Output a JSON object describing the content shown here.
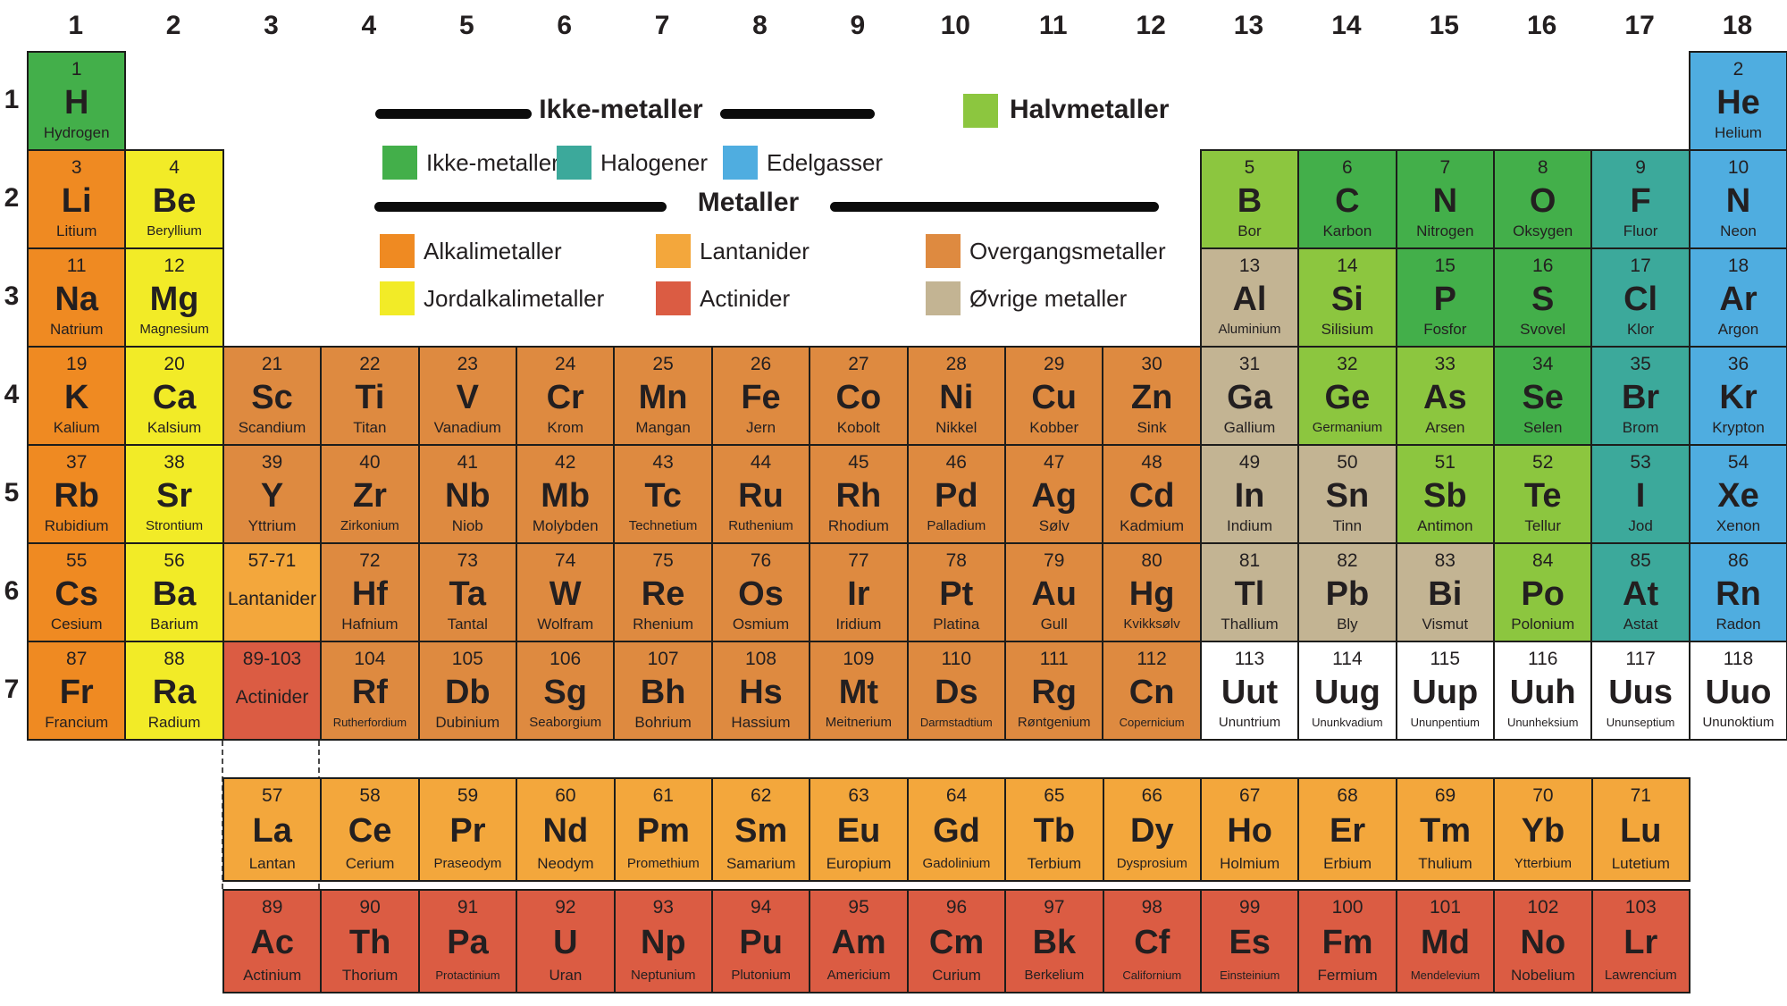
{
  "colors": {
    "nonmetal": "#43AF4A",
    "metalloid": "#8CC63F",
    "halogen": "#3CA99B",
    "noble": "#4FADE0",
    "alkali": "#EF8A22",
    "alkaline": "#F2EB27",
    "transition": "#DE8A40",
    "lanthanide": "#F3A73C",
    "actinide": "#DB5C43",
    "post": "#C3B493",
    "unknown": "#FFFFFF",
    "border": "#1d1d1b",
    "text": "#231f20"
  },
  "group_labels": [
    "1",
    "2",
    "3",
    "4",
    "5",
    "6",
    "7",
    "8",
    "9",
    "10",
    "11",
    "12",
    "13",
    "14",
    "15",
    "16",
    "17",
    "18"
  ],
  "period_labels": [
    "1",
    "2",
    "3",
    "4",
    "5",
    "6",
    "7"
  ],
  "legend": {
    "nonmetals_header": "Ikke-metaller",
    "metals_header": "Metaller",
    "halvmetaller": {
      "label": "Halvmetaller",
      "color": "#8CC63F"
    },
    "nonmetal_items": [
      {
        "label": "Ikke-metaller",
        "color": "#43AF4A"
      },
      {
        "label": "Halogener",
        "color": "#3CA99B"
      },
      {
        "label": "Edelgasser",
        "color": "#4FADE0"
      }
    ],
    "metal_items": [
      {
        "label": "Alkalimetaller",
        "color": "#EF8A22"
      },
      {
        "label": "Lantanider",
        "color": "#F3A73C"
      },
      {
        "label": "Overgangsmetaller",
        "color": "#DE8A40"
      },
      {
        "label": "Jordalkalimetaller",
        "color": "#F2EB27"
      },
      {
        "label": "Actinider",
        "color": "#DB5C43"
      },
      {
        "label": "Øvrige metaller",
        "color": "#C3B493"
      }
    ]
  },
  "placeholders": [
    {
      "range": "57-71",
      "label": "Lantanider",
      "group": 3,
      "period": 6,
      "cat": "lanthanide"
    },
    {
      "range": "89-103",
      "label": "Actinider",
      "group": 3,
      "period": 7,
      "cat": "actinide"
    }
  ],
  "elements": [
    {
      "n": "1",
      "s": "H",
      "name": "Hydrogen",
      "group": 1,
      "period": 1,
      "cat": "nonmetal"
    },
    {
      "n": "2",
      "s": "He",
      "name": "Helium",
      "group": 18,
      "period": 1,
      "cat": "noble"
    },
    {
      "n": "3",
      "s": "Li",
      "name": "Litium",
      "group": 1,
      "period": 2,
      "cat": "alkali"
    },
    {
      "n": "4",
      "s": "Be",
      "name": "Beryllium",
      "group": 2,
      "period": 2,
      "cat": "alkaline"
    },
    {
      "n": "5",
      "s": "B",
      "name": "Bor",
      "group": 13,
      "period": 2,
      "cat": "metalloid"
    },
    {
      "n": "6",
      "s": "C",
      "name": "Karbon",
      "group": 14,
      "period": 2,
      "cat": "nonmetal"
    },
    {
      "n": "7",
      "s": "N",
      "name": "Nitrogen",
      "group": 15,
      "period": 2,
      "cat": "nonmetal"
    },
    {
      "n": "8",
      "s": "O",
      "name": "Oksygen",
      "group": 16,
      "period": 2,
      "cat": "nonmetal"
    },
    {
      "n": "9",
      "s": "F",
      "name": "Fluor",
      "group": 17,
      "period": 2,
      "cat": "halogen"
    },
    {
      "n": "10",
      "s": "N",
      "name": "Neon",
      "group": 18,
      "period": 2,
      "cat": "noble"
    },
    {
      "n": "11",
      "s": "Na",
      "name": "Natrium",
      "group": 1,
      "period": 3,
      "cat": "alkali"
    },
    {
      "n": "12",
      "s": "Mg",
      "name": "Magnesium",
      "group": 2,
      "period": 3,
      "cat": "alkaline"
    },
    {
      "n": "13",
      "s": "Al",
      "name": "Aluminium",
      "group": 13,
      "period": 3,
      "cat": "post"
    },
    {
      "n": "14",
      "s": "Si",
      "name": "Silisium",
      "group": 14,
      "period": 3,
      "cat": "metalloid"
    },
    {
      "n": "15",
      "s": "P",
      "name": "Fosfor",
      "group": 15,
      "period": 3,
      "cat": "nonmetal"
    },
    {
      "n": "16",
      "s": "S",
      "name": "Svovel",
      "group": 16,
      "period": 3,
      "cat": "nonmetal"
    },
    {
      "n": "17",
      "s": "Cl",
      "name": "Klor",
      "group": 17,
      "period": 3,
      "cat": "halogen"
    },
    {
      "n": "18",
      "s": "Ar",
      "name": "Argon",
      "group": 18,
      "period": 3,
      "cat": "noble"
    },
    {
      "n": "19",
      "s": "K",
      "name": "Kalium",
      "group": 1,
      "period": 4,
      "cat": "alkali"
    },
    {
      "n": "20",
      "s": "Ca",
      "name": "Kalsium",
      "group": 2,
      "period": 4,
      "cat": "alkaline"
    },
    {
      "n": "21",
      "s": "Sc",
      "name": "Scandium",
      "group": 3,
      "period": 4,
      "cat": "transition"
    },
    {
      "n": "22",
      "s": "Ti",
      "name": "Titan",
      "group": 4,
      "period": 4,
      "cat": "transition"
    },
    {
      "n": "23",
      "s": "V",
      "name": "Vanadium",
      "group": 5,
      "period": 4,
      "cat": "transition"
    },
    {
      "n": "24",
      "s": "Cr",
      "name": "Krom",
      "group": 6,
      "period": 4,
      "cat": "transition"
    },
    {
      "n": "25",
      "s": "Mn",
      "name": "Mangan",
      "group": 7,
      "period": 4,
      "cat": "transition"
    },
    {
      "n": "26",
      "s": "Fe",
      "name": "Jern",
      "group": 8,
      "period": 4,
      "cat": "transition"
    },
    {
      "n": "27",
      "s": "Co",
      "name": "Kobolt",
      "group": 9,
      "period": 4,
      "cat": "transition"
    },
    {
      "n": "28",
      "s": "Ni",
      "name": "Nikkel",
      "group": 10,
      "period": 4,
      "cat": "transition"
    },
    {
      "n": "29",
      "s": "Cu",
      "name": "Kobber",
      "group": 11,
      "period": 4,
      "cat": "transition"
    },
    {
      "n": "30",
      "s": "Zn",
      "name": "Sink",
      "group": 12,
      "period": 4,
      "cat": "transition"
    },
    {
      "n": "31",
      "s": "Ga",
      "name": "Gallium",
      "group": 13,
      "period": 4,
      "cat": "post"
    },
    {
      "n": "32",
      "s": "Ge",
      "name": "Germanium",
      "group": 14,
      "period": 4,
      "cat": "metalloid"
    },
    {
      "n": "33",
      "s": "As",
      "name": "Arsen",
      "group": 15,
      "period": 4,
      "cat": "metalloid"
    },
    {
      "n": "34",
      "s": "Se",
      "name": "Selen",
      "group": 16,
      "period": 4,
      "cat": "nonmetal"
    },
    {
      "n": "35",
      "s": "Br",
      "name": "Brom",
      "group": 17,
      "period": 4,
      "cat": "halogen"
    },
    {
      "n": "36",
      "s": "Kr",
      "name": "Krypton",
      "group": 18,
      "period": 4,
      "cat": "noble"
    },
    {
      "n": "37",
      "s": "Rb",
      "name": "Rubidium",
      "group": 1,
      "period": 5,
      "cat": "alkali"
    },
    {
      "n": "38",
      "s": "Sr",
      "name": "Strontium",
      "group": 2,
      "period": 5,
      "cat": "alkaline"
    },
    {
      "n": "39",
      "s": "Y",
      "name": "Yttrium",
      "group": 3,
      "period": 5,
      "cat": "transition"
    },
    {
      "n": "40",
      "s": "Zr",
      "name": "Zirkonium",
      "group": 4,
      "period": 5,
      "cat": "transition"
    },
    {
      "n": "41",
      "s": "Nb",
      "name": "Niob",
      "group": 5,
      "period": 5,
      "cat": "transition"
    },
    {
      "n": "42",
      "s": "Mb",
      "name": "Molybden",
      "group": 6,
      "period": 5,
      "cat": "transition"
    },
    {
      "n": "43",
      "s": "Tc",
      "name": "Technetium",
      "group": 7,
      "period": 5,
      "cat": "transition"
    },
    {
      "n": "44",
      "s": "Ru",
      "name": "Ruthenium",
      "group": 8,
      "period": 5,
      "cat": "transition"
    },
    {
      "n": "45",
      "s": "Rh",
      "name": "Rhodium",
      "group": 9,
      "period": 5,
      "cat": "transition"
    },
    {
      "n": "46",
      "s": "Pd",
      "name": "Palladium",
      "group": 10,
      "period": 5,
      "cat": "transition"
    },
    {
      "n": "47",
      "s": "Ag",
      "name": "Sølv",
      "group": 11,
      "period": 5,
      "cat": "transition"
    },
    {
      "n": "48",
      "s": "Cd",
      "name": "Kadmium",
      "group": 12,
      "period": 5,
      "cat": "transition"
    },
    {
      "n": "49",
      "s": "In",
      "name": "Indium",
      "group": 13,
      "period": 5,
      "cat": "post"
    },
    {
      "n": "50",
      "s": "Sn",
      "name": "Tinn",
      "group": 14,
      "period": 5,
      "cat": "post"
    },
    {
      "n": "51",
      "s": "Sb",
      "name": "Antimon",
      "group": 15,
      "period": 5,
      "cat": "metalloid"
    },
    {
      "n": "52",
      "s": "Te",
      "name": "Tellur",
      "group": 16,
      "period": 5,
      "cat": "metalloid"
    },
    {
      "n": "53",
      "s": "I",
      "name": "Jod",
      "group": 17,
      "period": 5,
      "cat": "halogen"
    },
    {
      "n": "54",
      "s": "Xe",
      "name": "Xenon",
      "group": 18,
      "period": 5,
      "cat": "noble"
    },
    {
      "n": "55",
      "s": "Cs",
      "name": "Cesium",
      "group": 1,
      "period": 6,
      "cat": "alkali"
    },
    {
      "n": "56",
      "s": "Ba",
      "name": "Barium",
      "group": 2,
      "period": 6,
      "cat": "alkaline"
    },
    {
      "n": "72",
      "s": "Hf",
      "name": "Hafnium",
      "group": 4,
      "period": 6,
      "cat": "transition"
    },
    {
      "n": "73",
      "s": "Ta",
      "name": "Tantal",
      "group": 5,
      "period": 6,
      "cat": "transition"
    },
    {
      "n": "74",
      "s": "W",
      "name": "Wolfram",
      "group": 6,
      "period": 6,
      "cat": "transition"
    },
    {
      "n": "75",
      "s": "Re",
      "name": "Rhenium",
      "group": 7,
      "period": 6,
      "cat": "transition"
    },
    {
      "n": "76",
      "s": "Os",
      "name": "Osmium",
      "group": 8,
      "period": 6,
      "cat": "transition"
    },
    {
      "n": "77",
      "s": "Ir",
      "name": "Iridium",
      "group": 9,
      "period": 6,
      "cat": "transition"
    },
    {
      "n": "78",
      "s": "Pt",
      "name": "Platina",
      "group": 10,
      "period": 6,
      "cat": "transition"
    },
    {
      "n": "79",
      "s": "Au",
      "name": "Gull",
      "group": 11,
      "period": 6,
      "cat": "transition"
    },
    {
      "n": "80",
      "s": "Hg",
      "name": "Kvikksølv",
      "group": 12,
      "period": 6,
      "cat": "transition"
    },
    {
      "n": "81",
      "s": "Tl",
      "name": "Thallium",
      "group": 13,
      "period": 6,
      "cat": "post"
    },
    {
      "n": "82",
      "s": "Pb",
      "name": "Bly",
      "group": 14,
      "period": 6,
      "cat": "post"
    },
    {
      "n": "83",
      "s": "Bi",
      "name": "Vismut",
      "group": 15,
      "period": 6,
      "cat": "post"
    },
    {
      "n": "84",
      "s": "Po",
      "name": "Polonium",
      "group": 16,
      "period": 6,
      "cat": "metalloid"
    },
    {
      "n": "85",
      "s": "At",
      "name": "Astat",
      "group": 17,
      "period": 6,
      "cat": "halogen"
    },
    {
      "n": "86",
      "s": "Rn",
      "name": "Radon",
      "group": 18,
      "period": 6,
      "cat": "noble"
    },
    {
      "n": "87",
      "s": "Fr",
      "name": "Francium",
      "group": 1,
      "period": 7,
      "cat": "alkali"
    },
    {
      "n": "88",
      "s": "Ra",
      "name": "Radium",
      "group": 2,
      "period": 7,
      "cat": "alkaline"
    },
    {
      "n": "104",
      "s": "Rf",
      "name": "Rutherfordium",
      "group": 4,
      "period": 7,
      "cat": "transition"
    },
    {
      "n": "105",
      "s": "Db",
      "name": "Dubinium",
      "group": 5,
      "period": 7,
      "cat": "transition"
    },
    {
      "n": "106",
      "s": "Sg",
      "name": "Seaborgium",
      "group": 6,
      "period": 7,
      "cat": "transition"
    },
    {
      "n": "107",
      "s": "Bh",
      "name": "Bohrium",
      "group": 7,
      "period": 7,
      "cat": "transition"
    },
    {
      "n": "108",
      "s": "Hs",
      "name": "Hassium",
      "group": 8,
      "period": 7,
      "cat": "transition"
    },
    {
      "n": "109",
      "s": "Mt",
      "name": "Meitnerium",
      "group": 9,
      "period": 7,
      "cat": "transition"
    },
    {
      "n": "110",
      "s": "Ds",
      "name": "Darmstadtium",
      "group": 10,
      "period": 7,
      "cat": "transition"
    },
    {
      "n": "111",
      "s": "Rg",
      "name": "Røntgenium",
      "group": 11,
      "period": 7,
      "cat": "transition"
    },
    {
      "n": "112",
      "s": "Cn",
      "name": "Copernicium",
      "group": 12,
      "period": 7,
      "cat": "transition"
    },
    {
      "n": "113",
      "s": "Uut",
      "name": "Ununtrium",
      "group": 13,
      "period": 7,
      "cat": "unknown"
    },
    {
      "n": "114",
      "s": "Uug",
      "name": "Ununkvadium",
      "group": 14,
      "period": 7,
      "cat": "unknown"
    },
    {
      "n": "115",
      "s": "Uup",
      "name": "Ununpentium",
      "group": 15,
      "period": 7,
      "cat": "unknown"
    },
    {
      "n": "116",
      "s": "Uuh",
      "name": "Ununheksium",
      "group": 16,
      "period": 7,
      "cat": "unknown"
    },
    {
      "n": "117",
      "s": "Uus",
      "name": "Ununseptium",
      "group": 17,
      "period": 7,
      "cat": "unknown"
    },
    {
      "n": "118",
      "s": "Uuo",
      "name": "Ununoktium",
      "group": 18,
      "period": 7,
      "cat": "unknown"
    }
  ],
  "lanthanide_row": [
    {
      "n": "57",
      "s": "La",
      "name": "Lantan",
      "cat": "lanthanide"
    },
    {
      "n": "58",
      "s": "Ce",
      "name": "Cerium",
      "cat": "lanthanide"
    },
    {
      "n": "59",
      "s": "Pr",
      "name": "Praseodym",
      "cat": "lanthanide"
    },
    {
      "n": "60",
      "s": "Nd",
      "name": "Neodym",
      "cat": "lanthanide"
    },
    {
      "n": "61",
      "s": "Pm",
      "name": "Promethium",
      "cat": "lanthanide"
    },
    {
      "n": "62",
      "s": "Sm",
      "name": "Samarium",
      "cat": "lanthanide"
    },
    {
      "n": "63",
      "s": "Eu",
      "name": "Europium",
      "cat": "lanthanide"
    },
    {
      "n": "64",
      "s": "Gd",
      "name": "Gadolinium",
      "cat": "lanthanide"
    },
    {
      "n": "65",
      "s": "Tb",
      "name": "Terbium",
      "cat": "lanthanide"
    },
    {
      "n": "66",
      "s": "Dy",
      "name": "Dysprosium",
      "cat": "lanthanide"
    },
    {
      "n": "67",
      "s": "Ho",
      "name": "Holmium",
      "cat": "lanthanide"
    },
    {
      "n": "68",
      "s": "Er",
      "name": "Erbium",
      "cat": "lanthanide"
    },
    {
      "n": "69",
      "s": "Tm",
      "name": "Thulium",
      "cat": "lanthanide"
    },
    {
      "n": "70",
      "s": "Yb",
      "name": "Ytterbium",
      "cat": "lanthanide"
    },
    {
      "n": "71",
      "s": "Lu",
      "name": "Lutetium",
      "cat": "lanthanide"
    }
  ],
  "actinide_row": [
    {
      "n": "89",
      "s": "Ac",
      "name": "Actinium",
      "cat": "actinide"
    },
    {
      "n": "90",
      "s": "Th",
      "name": "Thorium",
      "cat": "actinide"
    },
    {
      "n": "91",
      "s": "Pa",
      "name": "Protactinium",
      "cat": "actinide"
    },
    {
      "n": "92",
      "s": "U",
      "name": "Uran",
      "cat": "actinide"
    },
    {
      "n": "93",
      "s": "Np",
      "name": "Neptunium",
      "cat": "actinide"
    },
    {
      "n": "94",
      "s": "Pu",
      "name": "Plutonium",
      "cat": "actinide"
    },
    {
      "n": "95",
      "s": "Am",
      "name": "Americium",
      "cat": "actinide"
    },
    {
      "n": "96",
      "s": "Cm",
      "name": "Curium",
      "cat": "actinide"
    },
    {
      "n": "97",
      "s": "Bk",
      "name": "Berkelium",
      "cat": "actinide"
    },
    {
      "n": "98",
      "s": "Cf",
      "name": "Californium",
      "cat": "actinide"
    },
    {
      "n": "99",
      "s": "Es",
      "name": "Einsteinium",
      "cat": "actinide"
    },
    {
      "n": "100",
      "s": "Fm",
      "name": "Fermium",
      "cat": "actinide"
    },
    {
      "n": "101",
      "s": "Md",
      "name": "Mendelevium",
      "cat": "actinide"
    },
    {
      "n": "102",
      "s": "No",
      "name": "Nobelium",
      "cat": "actinide"
    },
    {
      "n": "103",
      "s": "Lr",
      "name": "Lawrencium",
      "cat": "actinide"
    }
  ]
}
